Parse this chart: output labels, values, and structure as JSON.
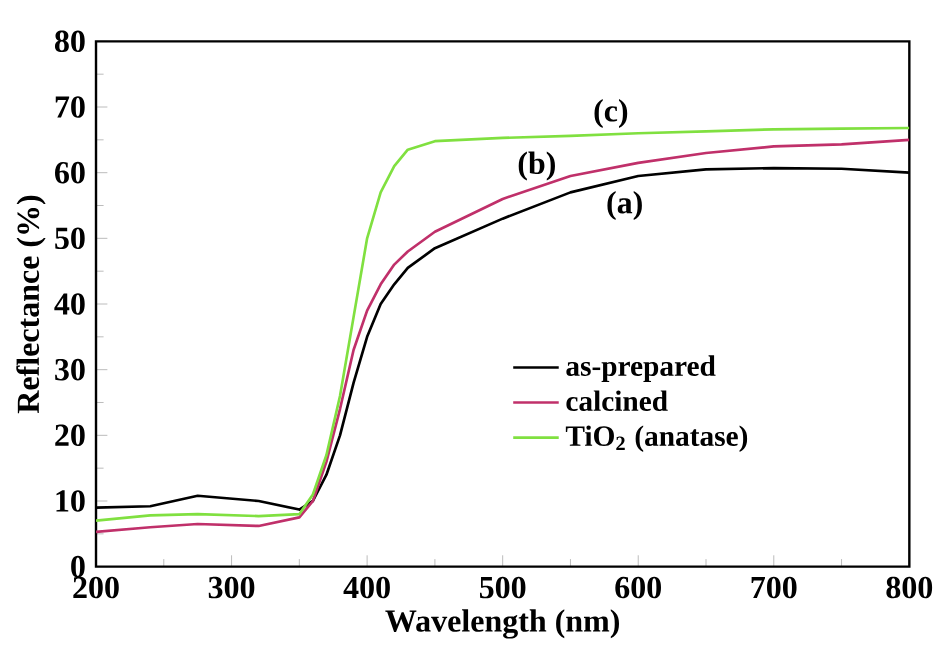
{
  "chart_data": {
    "type": "line",
    "xlabel": "Wavelength (nm)",
    "ylabel": "Reflectance (%)",
    "xlim": [
      200,
      800
    ],
    "ylim": [
      0,
      80
    ],
    "xticks": [
      200,
      300,
      400,
      500,
      600,
      700,
      800
    ],
    "yticks": [
      0,
      10,
      20,
      30,
      40,
      50,
      60,
      70,
      80
    ],
    "x": [
      200,
      240,
      275,
      320,
      350,
      360,
      370,
      380,
      390,
      400,
      410,
      420,
      430,
      450,
      500,
      550,
      600,
      650,
      700,
      750,
      800
    ],
    "series": [
      {
        "name": "as-prepared",
        "color": "#000000",
        "values": [
          9.0,
          9.2,
          10.8,
          10.0,
          8.7,
          10.0,
          14.0,
          20.0,
          28.0,
          35.0,
          40.0,
          43.0,
          45.5,
          48.5,
          53.0,
          57.0,
          59.5,
          60.5,
          60.7,
          60.6,
          60.0
        ]
      },
      {
        "name": "calcined",
        "color": "#c0306a",
        "values": [
          5.3,
          6.0,
          6.5,
          6.2,
          7.5,
          10.0,
          16.0,
          24.0,
          33.0,
          39.0,
          43.0,
          46.0,
          48.0,
          51.0,
          56.0,
          59.5,
          61.5,
          63.0,
          64.0,
          64.3,
          65.0
        ]
      },
      {
        "name": "TiO$_{2}$ (anatase)",
        "color": "#80e040",
        "values": [
          7.0,
          7.8,
          8.0,
          7.7,
          8.0,
          11.0,
          17.0,
          26.0,
          38.0,
          50.0,
          57.0,
          61.0,
          63.5,
          64.8,
          65.3,
          65.6,
          66.0,
          66.3,
          66.6,
          66.7,
          66.8
        ]
      }
    ],
    "annotations": [
      "(c)",
      "(b)",
      "(a)"
    ],
    "legend": "bottom right",
    "grid": false,
    "marker": "none",
    "line_style": "solid"
  }
}
